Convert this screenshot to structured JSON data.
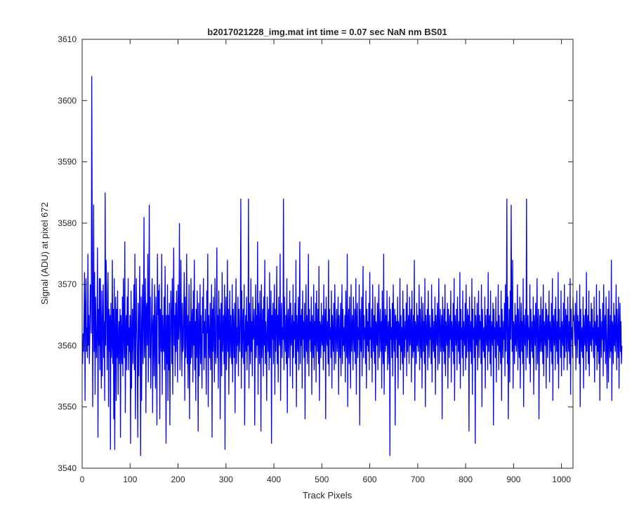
{
  "chart_data": {
    "type": "line",
    "title": "b2017021228_img.mat int time = 0.07 sec  NaN nm BS01",
    "xlabel": "Track Pixels",
    "ylabel": "Signal (ADU) at pixel 672",
    "xlim": [
      0,
      1024
    ],
    "ylim": [
      3540,
      3610
    ],
    "xticks": [
      0,
      100,
      200,
      300,
      400,
      500,
      600,
      700,
      800,
      900,
      1000
    ],
    "yticks": [
      3540,
      3550,
      3560,
      3570,
      3580,
      3590,
      3600,
      3610
    ],
    "grid": false,
    "legend": "none",
    "line_color": "#0000ff",
    "series": [
      {
        "color": "#0000ff",
        "x_start": 1,
        "x_step": 1,
        "y": [
          3557,
          3562,
          3559,
          3565,
          3572,
          3551,
          3566,
          3571,
          3559,
          3563,
          3558,
          3575,
          3560,
          3565,
          3557,
          3562,
          3570,
          3569,
          3562,
          3604,
          3578,
          3550,
          3565,
          3583,
          3559,
          3572,
          3552,
          3568,
          3561,
          3558,
          3564,
          3576,
          3545,
          3566,
          3560,
          3571,
          3556,
          3571,
          3562,
          3553,
          3569,
          3555,
          3563,
          3570,
          3558,
          3564,
          3551,
          3585,
          3560,
          3574,
          3569,
          3556,
          3563,
          3572,
          3550,
          3566,
          3559,
          3565,
          3543,
          3567,
          3558,
          3560,
          3574,
          3557,
          3566,
          3548,
          3571,
          3543,
          3562,
          3568,
          3551,
          3566,
          3558,
          3569,
          3552,
          3561,
          3564,
          3557,
          3566,
          3545,
          3565,
          3562,
          3557,
          3568,
          3555,
          3571,
          3562,
          3558,
          3577,
          3549,
          3563,
          3565,
          3556,
          3568,
          3560,
          3571,
          3556,
          3563,
          3559,
          3565,
          3544,
          3569,
          3553,
          3562,
          3566,
          3557,
          3564,
          3570,
          3556,
          3575,
          3548,
          3560,
          3571,
          3563,
          3558,
          3545,
          3567,
          3555,
          3562,
          3573,
          3560,
          3542,
          3568,
          3551,
          3563,
          3570,
          3557,
          3564,
          3581,
          3558,
          3562,
          3571,
          3549,
          3566,
          3567,
          3560,
          3575,
          3554,
          3564,
          3583,
          3558,
          3568,
          3553,
          3560,
          3566,
          3571,
          3549,
          3563,
          3565,
          3555,
          3570,
          3561,
          3553,
          3568,
          3562,
          3547,
          3575,
          3565,
          3569,
          3557,
          3570,
          3548,
          3566,
          3562,
          3559,
          3575,
          3552,
          3565,
          3560,
          3559,
          3568,
          3556,
          3573,
          3562,
          3544,
          3565,
          3557,
          3570,
          3551,
          3565,
          3556,
          3567,
          3547,
          3561,
          3569,
          3564,
          3557,
          3571,
          3552,
          3566,
          3576,
          3560,
          3565,
          3555,
          3567,
          3559,
          3569,
          3563,
          3554,
          3570,
          3561,
          3564,
          3580,
          3556,
          3561,
          3574,
          3564,
          3555,
          3567,
          3559,
          3560,
          3566,
          3572,
          3551,
          3568,
          3558,
          3562,
          3575,
          3557,
          3565,
          3553,
          3562,
          3570,
          3548,
          3564,
          3557,
          3571,
          3558,
          3563,
          3566,
          3554,
          3569,
          3560,
          3574,
          3556,
          3564,
          3551,
          3566,
          3558,
          3569,
          3563,
          3546,
          3567,
          3555,
          3562,
          3570,
          3557,
          3565,
          3559,
          3553,
          3568,
          3562,
          3571,
          3556,
          3564,
          3558,
          3566,
          3560,
          3552,
          3569,
          3562,
          3575,
          3550,
          3565,
          3561,
          3558,
          3567,
          3556,
          3563,
          3570,
          3545,
          3566,
          3559,
          3568,
          3562,
          3554,
          3571,
          3560,
          3557,
          3564,
          3576,
          3558,
          3565,
          3553,
          3569,
          3561,
          3566,
          3548,
          3563,
          3567,
          3555,
          3572,
          3559,
          3562,
          3565,
          3557,
          3570,
          3543,
          3564,
          3568,
          3556,
          3561,
          3574,
          3559,
          3566,
          3552,
          3563,
          3569,
          3558,
          3565,
          3561,
          3557,
          3570,
          3554,
          3566,
          3562,
          3558,
          3567,
          3549,
          3564,
          3571,
          3557,
          3563,
          3560,
          3568,
          3555,
          3566,
          3562,
          3559,
          3565,
          3584,
          3553,
          3569,
          3558,
          3563,
          3566,
          3557,
          3570,
          3547,
          3561,
          3565,
          3559,
          3568,
          3556,
          3564,
          3560,
          3584,
          3553,
          3567,
          3562,
          3557,
          3571,
          3559,
          3564,
          3555,
          3568,
          3561,
          3563,
          3566,
          3547,
          3562,
          3570,
          3558,
          3565,
          3560,
          3577,
          3552,
          3567,
          3563,
          3557,
          3569,
          3564,
          3546,
          3570,
          3558,
          3562,
          3566,
          3555,
          3568,
          3560,
          3574,
          3557,
          3564,
          3561,
          3551,
          3568,
          3563,
          3559,
          3566,
          3556,
          3572,
          3558,
          3563,
          3569,
          3544,
          3565,
          3561,
          3567,
          3557,
          3564,
          3570,
          3552,
          3566,
          3559,
          3563,
          3573,
          3557,
          3565,
          3554,
          3568,
          3562,
          3560,
          3575,
          3551,
          3564,
          3567,
          3558,
          3563,
          3561,
          3584,
          3556,
          3568,
          3562,
          3559,
          3565,
          3557,
          3571,
          3549,
          3564,
          3566,
          3558,
          3563,
          3569,
          3555,
          3567,
          3560,
          3562,
          3565,
          3553,
          3570,
          3558,
          3564,
          3561,
          3567,
          3557,
          3574,
          3550,
          3565,
          3562,
          3559,
          3568,
          3556,
          3563,
          3577,
          3557,
          3565,
          3560,
          3566,
          3553,
          3569,
          3561,
          3564,
          3558,
          3567,
          3548,
          3563,
          3570,
          3559,
          3565,
          3557,
          3562,
          3575,
          3555,
          3566,
          3561,
          3564,
          3559,
          3568,
          3552,
          3565,
          3562,
          3558,
          3570,
          3556,
          3564,
          3560,
          3567,
          3554,
          3569,
          3562,
          3559,
          3566,
          3557,
          3573,
          3551,
          3564,
          3563,
          3558,
          3567,
          3561,
          3560,
          3565,
          3556,
          3570,
          3559,
          3563,
          3566,
          3548,
          3568,
          3562,
          3560,
          3564,
          3557,
          3574,
          3555,
          3566,
          3561,
          3563,
          3558,
          3569,
          3553,
          3565,
          3562,
          3559,
          3567,
          3556,
          3570,
          3564,
          3557,
          3562,
          3566,
          3559,
          3563,
          3568,
          3552,
          3565,
          3561,
          3558,
          3567,
          3555,
          3564,
          3570,
          3557,
          3566,
          3560,
          3563,
          3559,
          3565,
          3554,
          3569,
          3562,
          3558,
          3575,
          3550,
          3564,
          3566,
          3557,
          3568,
          3561,
          3553,
          3570,
          3559,
          3563,
          3565,
          3556,
          3568,
          3562,
          3559,
          3566,
          3557,
          3571,
          3552,
          3564,
          3567,
          3558,
          3563,
          3561,
          3570,
          3547,
          3566,
          3562,
          3559,
          3568,
          3555,
          3564,
          3573,
          3558,
          3565,
          3561,
          3563,
          3557,
          3569,
          3553,
          3566,
          3560,
          3564,
          3559,
          3567,
          3556,
          3572,
          3561,
          3563,
          3558,
          3566,
          3554,
          3570,
          3562,
          3559,
          3565,
          3557,
          3568,
          3551,
          3564,
          3563,
          3560,
          3567,
          3556,
          3565,
          3570,
          3558,
          3562,
          3566,
          3559,
          3564,
          3553,
          3569,
          3561,
          3557,
          3575,
          3552,
          3563,
          3566,
          3559,
          3565,
          3560,
          3569,
          3556,
          3562,
          3564,
          3557,
          3568,
          3542,
          3566,
          3561,
          3563,
          3558,
          3567,
          3555,
          3570,
          3562,
          3559,
          3566,
          3547,
          3565,
          3561,
          3564,
          3558,
          3568,
          3553,
          3564,
          3562,
          3560,
          3571,
          3556,
          3565,
          3559,
          3563,
          3557,
          3569,
          3552,
          3566,
          3562,
          3558,
          3564,
          3561,
          3567,
          3555,
          3570,
          3559,
          3563,
          3565,
          3557,
          3568,
          3560,
          3562,
          3566,
          3554,
          3569,
          3561,
          3558,
          3565,
          3559,
          3574,
          3551,
          3564,
          3563,
          3557,
          3567,
          3560,
          3565,
          3559,
          3562,
          3570,
          3556,
          3566,
          3561,
          3558,
          3568,
          3553,
          3563,
          3567,
          3559,
          3564,
          3557,
          3571,
          3550,
          3565,
          3562,
          3560,
          3566,
          3556,
          3569,
          3562,
          3558,
          3565,
          3561,
          3563,
          3557,
          3570,
          3554,
          3566,
          3562,
          3559,
          3564,
          3558,
          3568,
          3552,
          3565,
          3563,
          3560,
          3567,
          3556,
          3564,
          3571,
          3557,
          3563,
          3566,
          3559,
          3562,
          3565,
          3548,
          3568,
          3561,
          3559,
          3566,
          3557,
          3570,
          3555,
          3564,
          3562,
          3560,
          3567,
          3553,
          3566,
          3563,
          3558,
          3565,
          3561,
          3569,
          3554,
          3564,
          3562,
          3559,
          3567,
          3557,
          3571,
          3551,
          3565,
          3563,
          3560,
          3566,
          3556,
          3568,
          3562,
          3559,
          3564,
          3557,
          3572,
          3553,
          3566,
          3561,
          3563,
          3558,
          3569,
          3555,
          3564,
          3562,
          3560,
          3567,
          3556,
          3570,
          3558,
          3563,
          3566,
          3559,
          3565,
          3546,
          3568,
          3562,
          3559,
          3564,
          3557,
          3571,
          3552,
          3566,
          3561,
          3563,
          3558,
          3568,
          3544,
          3565,
          3562,
          3560,
          3567,
          3556,
          3563,
          3569,
          3558,
          3565,
          3561,
          3564,
          3557,
          3570,
          3550,
          3566,
          3562,
          3559,
          3563,
          3558,
          3568,
          3553,
          3565,
          3562,
          3560,
          3566,
          3556,
          3572,
          3559,
          3563,
          3565,
          3557,
          3569,
          3555,
          3564,
          3562,
          3560,
          3567,
          3547,
          3566,
          3561,
          3563,
          3558,
          3568,
          3554,
          3564,
          3562,
          3560,
          3570,
          3556,
          3565,
          3559,
          3563,
          3557,
          3569,
          3551,
          3566,
          3562,
          3558,
          3564,
          3561,
          3567,
          3555,
          3570,
          3559,
          3563,
          3584,
          3557,
          3568,
          3548,
          3562,
          3566,
          3554,
          3569,
          3561,
          3583,
          3565,
          3559,
          3574,
          3553,
          3564,
          3563,
          3557,
          3567,
          3560,
          3565,
          3559,
          3562,
          3570,
          3556,
          3566,
          3561,
          3558,
          3568,
          3553,
          3563,
          3567,
          3559,
          3564,
          3557,
          3571,
          3550,
          3565,
          3562,
          3560,
          3566,
          3556,
          3584,
          3562,
          3558,
          3565,
          3561,
          3563,
          3557,
          3570,
          3554,
          3566,
          3562,
          3559,
          3564,
          3558,
          3568,
          3552,
          3565,
          3563,
          3560,
          3567,
          3556,
          3564,
          3571,
          3557,
          3563,
          3566,
          3548,
          3562,
          3565,
          3559,
          3568,
          3561,
          3559,
          3566,
          3557,
          3570,
          3555,
          3564,
          3562,
          3560,
          3567,
          3553,
          3566,
          3563,
          3558,
          3565,
          3561,
          3569,
          3554,
          3564,
          3562,
          3559,
          3567,
          3557,
          3571,
          3551,
          3565,
          3563,
          3560,
          3566,
          3556,
          3568,
          3562,
          3559,
          3564,
          3557,
          3572,
          3553,
          3566,
          3561,
          3563,
          3558,
          3569,
          3555,
          3564,
          3562,
          3560,
          3567,
          3556,
          3570,
          3558,
          3563,
          3566,
          3559,
          3565,
          3556,
          3568,
          3562,
          3559,
          3564,
          3557,
          3571,
          3552,
          3566,
          3561,
          3563,
          3558,
          3568,
          3564,
          3565,
          3562,
          3560,
          3567,
          3556,
          3563,
          3569,
          3558,
          3565,
          3561,
          3564,
          3557,
          3570,
          3550,
          3566,
          3562,
          3559,
          3563,
          3558,
          3568,
          3553,
          3565,
          3562,
          3560,
          3566,
          3556,
          3572,
          3559,
          3563,
          3565,
          3557,
          3569,
          3555,
          3564,
          3562,
          3560,
          3567,
          3559,
          3566,
          3561,
          3563,
          3558,
          3568,
          3554,
          3564,
          3562,
          3560,
          3570,
          3556,
          3565,
          3559,
          3563,
          3557,
          3569,
          3551,
          3566,
          3562,
          3558,
          3564,
          3561,
          3567,
          3555,
          3570,
          3559,
          3563,
          3565,
          3557,
          3568,
          3560,
          3553,
          3562,
          3566,
          3554,
          3569,
          3561,
          3558,
          3565,
          3559,
          3574,
          3551,
          3564,
          3563,
          3557,
          3567,
          3560,
          3565,
          3559,
          3562,
          3570,
          3556,
          3566,
          3561,
          3558,
          3568,
          3553,
          3563,
          3567,
          3559,
          3564,
          3557,
          3560
        ]
      }
    ]
  }
}
